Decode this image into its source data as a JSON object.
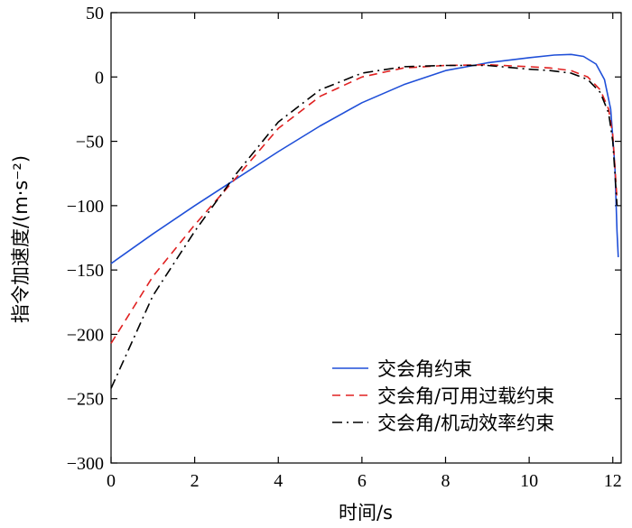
{
  "chart_data": {
    "type": "line",
    "title": "",
    "xlabel": "时间/s",
    "ylabel": "指令加速度/(m·s⁻²)",
    "xlim": [
      0,
      12.2
    ],
    "ylim": [
      -300,
      50
    ],
    "xticks": [
      0,
      2,
      4,
      6,
      8,
      10,
      12
    ],
    "yticks": [
      50,
      0,
      -50,
      -100,
      -150,
      -200,
      -250,
      -300
    ],
    "xtick_labels": [
      "0",
      "2",
      "4",
      "6",
      "8",
      "10",
      "12"
    ],
    "ytick_labels": [
      "50",
      "0",
      "−50",
      "−100",
      "−150",
      "−200",
      "−250",
      "−300"
    ],
    "grid": false,
    "legend_position": "bottom-right",
    "series": [
      {
        "name": "交会角约束",
        "color": "#1f4fd8",
        "style": "solid",
        "x": [
          0,
          1,
          2,
          3,
          4,
          5,
          6,
          7,
          8,
          9,
          10,
          10.6,
          11,
          11.3,
          11.6,
          11.8,
          11.95,
          12.05,
          12.1,
          12.13
        ],
        "y": [
          -145,
          -122,
          -100,
          -79,
          -58,
          -38,
          -20,
          -6,
          5,
          11,
          15,
          17,
          17.5,
          16,
          10,
          -2,
          -25,
          -70,
          -120,
          -140
        ]
      },
      {
        "name": "交会角/可用过载约束",
        "color": "#e02020",
        "style": "dashed",
        "x": [
          0,
          1,
          2,
          3,
          4,
          5,
          6,
          7,
          8,
          9,
          10,
          10.5,
          11,
          11.4,
          11.7,
          11.9,
          12.0,
          12.05,
          12.1
        ],
        "y": [
          -207,
          -155,
          -115,
          -78,
          -40,
          -15,
          0,
          7,
          9,
          9.5,
          8,
          7,
          5,
          0,
          -10,
          -25,
          -45,
          -70,
          -95
        ]
      },
      {
        "name": "交会角/机动效率约束",
        "color": "#000000",
        "style": "dashdot",
        "x": [
          0,
          1,
          2,
          3,
          4,
          5,
          6,
          7,
          8,
          9,
          10,
          10.5,
          11,
          11.4,
          11.7,
          11.9,
          12.0,
          12.05,
          12.1
        ],
        "y": [
          -242,
          -170,
          -120,
          -75,
          -35,
          -10,
          3,
          8,
          9,
          9,
          6,
          5,
          3,
          -2,
          -12,
          -28,
          -50,
          -75,
          -100
        ]
      }
    ]
  }
}
